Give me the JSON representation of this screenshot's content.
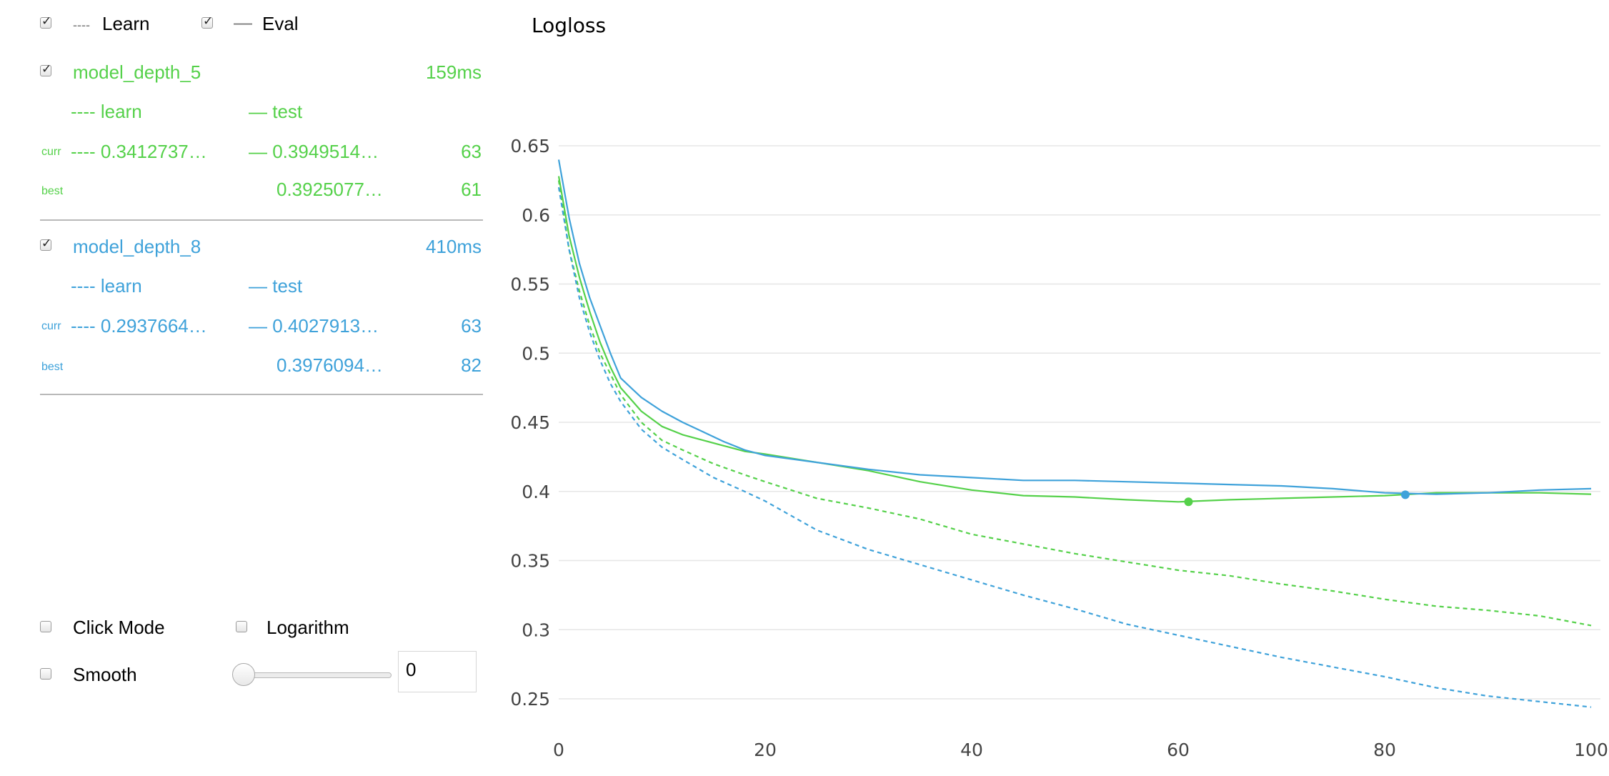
{
  "legend": {
    "learn_glyph": "----",
    "learn_label": "Learn",
    "eval_glyph": "—",
    "eval_label": "Eval"
  },
  "models": [
    {
      "name": "model_depth_5",
      "time": "159ms",
      "color": "#55d14a",
      "learn_header": "---- learn",
      "test_header": "— test",
      "curr_label": "curr",
      "curr_learn": "---- 0.3412737…",
      "curr_test": "— 0.3949514…",
      "curr_iter": "63",
      "best_label": "best",
      "best_test": "0.3925077…",
      "best_iter": "61"
    },
    {
      "name": "model_depth_8",
      "time": "410ms",
      "color": "#3fa2da",
      "learn_header": "---- learn",
      "test_header": "— test",
      "curr_label": "curr",
      "curr_learn": "---- 0.2937664…",
      "curr_test": "— 0.4027913…",
      "curr_iter": "63",
      "best_label": "best",
      "best_test": "0.3976094…",
      "best_iter": "82"
    }
  ],
  "controls": {
    "click_mode": "Click Mode",
    "logarithm": "Logarithm",
    "smooth": "Smooth",
    "smooth_value": "0"
  },
  "chart_data": {
    "type": "line",
    "title": "Logloss",
    "xlabel": "",
    "ylabel": "",
    "xlim": [
      0,
      100
    ],
    "ylim": [
      0.23,
      0.655
    ],
    "xticks": [
      0,
      20,
      40,
      60,
      80,
      100
    ],
    "yticks": [
      0.25,
      0.3,
      0.35,
      0.4,
      0.45,
      0.5,
      0.55,
      0.6,
      0.65
    ],
    "grid": true,
    "series": [
      {
        "name": "model_depth_5 learn",
        "color": "#55d14a",
        "dash": true,
        "x": [
          0,
          1,
          2,
          3,
          4,
          5,
          6,
          8,
          10,
          12,
          15,
          18,
          20,
          25,
          30,
          35,
          40,
          45,
          50,
          55,
          60,
          65,
          70,
          75,
          80,
          85,
          90,
          95,
          100
        ],
        "y": [
          0.625,
          0.575,
          0.545,
          0.52,
          0.5,
          0.485,
          0.47,
          0.45,
          0.437,
          0.43,
          0.42,
          0.412,
          0.407,
          0.395,
          0.388,
          0.38,
          0.369,
          0.362,
          0.355,
          0.349,
          0.343,
          0.339,
          0.333,
          0.328,
          0.322,
          0.317,
          0.314,
          0.31,
          0.303
        ]
      },
      {
        "name": "model_depth_5 test",
        "color": "#55d14a",
        "dash": false,
        "x": [
          0,
          1,
          2,
          3,
          4,
          5,
          6,
          8,
          10,
          12,
          14,
          16,
          18,
          20,
          25,
          30,
          35,
          40,
          45,
          50,
          55,
          60,
          65,
          70,
          75,
          80,
          85,
          90,
          95,
          100
        ],
        "y": [
          0.628,
          0.585,
          0.555,
          0.53,
          0.508,
          0.49,
          0.475,
          0.458,
          0.447,
          0.441,
          0.437,
          0.433,
          0.429,
          0.427,
          0.421,
          0.415,
          0.407,
          0.401,
          0.397,
          0.396,
          0.394,
          0.3925,
          0.394,
          0.395,
          0.396,
          0.397,
          0.399,
          0.399,
          0.399,
          0.398
        ]
      },
      {
        "name": "model_depth_8 learn",
        "color": "#3fa2da",
        "dash": true,
        "x": [
          0,
          1,
          2,
          3,
          4,
          5,
          6,
          8,
          10,
          12,
          15,
          18,
          20,
          25,
          30,
          35,
          40,
          45,
          50,
          55,
          60,
          65,
          70,
          75,
          80,
          85,
          90,
          95,
          100
        ],
        "y": [
          0.62,
          0.575,
          0.54,
          0.515,
          0.495,
          0.478,
          0.465,
          0.445,
          0.432,
          0.423,
          0.41,
          0.4,
          0.393,
          0.372,
          0.358,
          0.347,
          0.336,
          0.325,
          0.315,
          0.304,
          0.296,
          0.288,
          0.28,
          0.273,
          0.266,
          0.258,
          0.252,
          0.248,
          0.244
        ]
      },
      {
        "name": "model_depth_8 test",
        "color": "#3fa2da",
        "dash": false,
        "x": [
          0,
          1,
          2,
          3,
          4,
          5,
          6,
          8,
          10,
          12,
          14,
          16,
          18,
          20,
          25,
          30,
          35,
          40,
          45,
          50,
          55,
          60,
          65,
          70,
          75,
          80,
          85,
          90,
          95,
          100
        ],
        "y": [
          0.64,
          0.598,
          0.565,
          0.54,
          0.52,
          0.5,
          0.482,
          0.468,
          0.458,
          0.45,
          0.443,
          0.436,
          0.43,
          0.426,
          0.421,
          0.416,
          0.412,
          0.41,
          0.408,
          0.408,
          0.407,
          0.406,
          0.405,
          0.404,
          0.402,
          0.399,
          0.398,
          0.399,
          0.401,
          0.402
        ]
      }
    ],
    "best_points": [
      {
        "model": "model_depth_5",
        "x": 61,
        "y": 0.3925077,
        "color": "#55d14a"
      },
      {
        "model": "model_depth_8",
        "x": 82,
        "y": 0.3976094,
        "color": "#3fa2da"
      }
    ]
  }
}
